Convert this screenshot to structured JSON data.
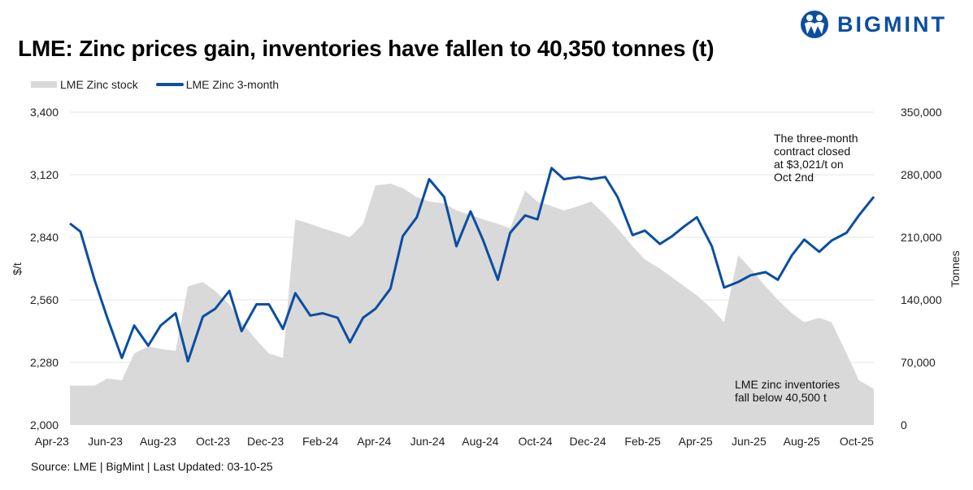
{
  "title": "LME: Zinc prices gain, inventories have fallen to 40,350 tonnes (t)",
  "logo": {
    "text": "BIGMINT",
    "color": "#0b4ea2",
    "icon": "bigmint-people-logo-icon"
  },
  "source": "Source: LME | BigMint | Last Updated: 03-10-25",
  "annotations": {
    "price_note": [
      "The three-month",
      "contract closed",
      "at $3,021/t on",
      "Oct 2nd"
    ],
    "stock_note": [
      "LME zinc inventories",
      "fall below 40,500 t"
    ]
  },
  "chart_data": {
    "type": "line+area",
    "title": "LME: Zinc prices gain, inventories have fallen to 40,350 tonnes (t)",
    "ylabel": "$/t",
    "y2label": "Tonnes",
    "ylim": [
      2000,
      3400
    ],
    "y2lim": [
      0,
      350000
    ],
    "yticks": [
      "2,000",
      "2,280",
      "2,560",
      "2,840",
      "3,120",
      "3,400"
    ],
    "y2ticks": [
      "0",
      "70,000",
      "140,000",
      "210,000",
      "280,000",
      "350,000"
    ],
    "xticks": [
      "Apr-23",
      "Jun-23",
      "Aug-23",
      "Oct-23",
      "Dec-23",
      "Feb-24",
      "Apr-24",
      "Jun-24",
      "Aug-24",
      "Oct-24",
      "Dec-24",
      "Feb-25",
      "Apr-25",
      "Jun-25",
      "Aug-25",
      "Oct-25"
    ],
    "xtick_dates": [
      "2023-04-01",
      "2023-06-01",
      "2023-08-01",
      "2023-10-01",
      "2023-12-01",
      "2024-02-01",
      "2024-04-01",
      "2024-06-01",
      "2024-08-01",
      "2024-10-01",
      "2024-12-01",
      "2025-02-01",
      "2025-04-01",
      "2025-06-01",
      "2025-08-01",
      "2025-10-01"
    ],
    "grid": true,
    "legend_placement": "top-left",
    "x": [
      "2023-04-03",
      "2023-04-15",
      "2023-05-01",
      "2023-05-15",
      "2023-06-01",
      "2023-06-15",
      "2023-07-01",
      "2023-07-15",
      "2023-08-01",
      "2023-08-15",
      "2023-09-01",
      "2023-09-15",
      "2023-10-01",
      "2023-10-15",
      "2023-11-01",
      "2023-11-15",
      "2023-12-01",
      "2023-12-15",
      "2024-01-01",
      "2024-01-15",
      "2024-02-01",
      "2024-02-15",
      "2024-03-01",
      "2024-03-15",
      "2024-04-01",
      "2024-04-15",
      "2024-05-01",
      "2024-05-15",
      "2024-06-01",
      "2024-06-15",
      "2024-07-01",
      "2024-07-15",
      "2024-08-01",
      "2024-08-15",
      "2024-09-01",
      "2024-09-15",
      "2024-10-01",
      "2024-10-15",
      "2024-11-01",
      "2024-11-15",
      "2024-12-01",
      "2024-12-15",
      "2025-01-01",
      "2025-01-15",
      "2025-02-01",
      "2025-02-15",
      "2025-03-01",
      "2025-03-15",
      "2025-04-01",
      "2025-04-15",
      "2025-05-01",
      "2025-05-15",
      "2025-06-01",
      "2025-06-15",
      "2025-07-01",
      "2025-07-15",
      "2025-08-01",
      "2025-08-15",
      "2025-09-01",
      "2025-09-15",
      "2025-10-02"
    ],
    "series": [
      {
        "name": "LME Zinc stock",
        "axis": "right",
        "type": "area",
        "color": "#d9d9d9",
        "values": [
          44000,
          44000,
          44000,
          52000,
          50000,
          80000,
          88000,
          85000,
          83000,
          155000,
          160000,
          150000,
          135000,
          115000,
          95000,
          80000,
          75000,
          230000,
          225000,
          220000,
          215000,
          210000,
          225000,
          268000,
          270000,
          265000,
          255000,
          250000,
          248000,
          240000,
          235000,
          230000,
          225000,
          220000,
          262000,
          250000,
          245000,
          240000,
          245000,
          250000,
          235000,
          220000,
          200000,
          185000,
          175000,
          165000,
          155000,
          145000,
          130000,
          115000,
          190000,
          175000,
          155000,
          140000,
          125000,
          115000,
          120000,
          115000,
          80000,
          50000,
          40350
        ]
      },
      {
        "name": "LME Zinc 3-month",
        "axis": "left",
        "type": "line",
        "color": "#0b4ea2",
        "values": [
          2902,
          2865,
          2650,
          2485,
          2300,
          2445,
          2355,
          2445,
          2500,
          2285,
          2485,
          2520,
          2600,
          2420,
          2540,
          2540,
          2430,
          2590,
          2490,
          2500,
          2480,
          2370,
          2480,
          2520,
          2610,
          2845,
          2930,
          3100,
          3020,
          2800,
          2956,
          2830,
          2650,
          2860,
          2938,
          2920,
          3150,
          3100,
          3110,
          3100,
          3110,
          3020,
          2850,
          2870,
          2810,
          2845,
          2890,
          2930,
          2800,
          2615,
          2640,
          2670,
          2684,
          2650,
          2760,
          2830,
          2775,
          2825,
          2860,
          2938,
          3021
        ]
      }
    ]
  }
}
